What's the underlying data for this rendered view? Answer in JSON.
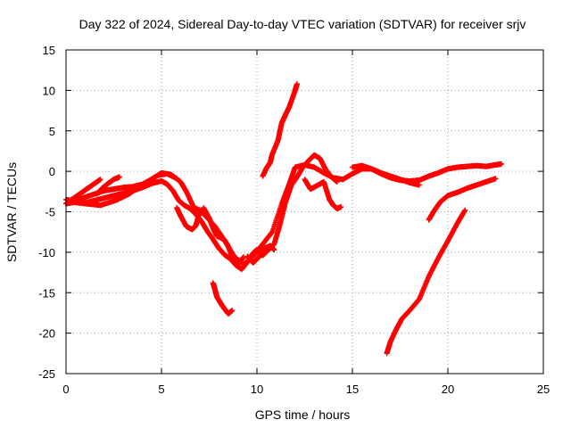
{
  "chart_data": {
    "type": "scatter",
    "title": "Day 322 of 2024, Sidereal Day-to-day VTEC variation (SDTVAR) for receiver srjv",
    "xlabel": "GPS time / hours",
    "ylabel": "SDTVAR / TECUs",
    "xlim": [
      0,
      25
    ],
    "ylim": [
      -25,
      15
    ],
    "xticks": [
      "0",
      "5",
      "10",
      "15",
      "20",
      "25"
    ],
    "yticks": [
      "-25",
      "-20",
      "-15",
      "-10",
      "-5",
      "0",
      "5",
      "10",
      "15"
    ],
    "grid": true,
    "marker": "+",
    "color": "#ff0000",
    "series": [
      {
        "x": [
          0,
          0.5,
          1,
          1.5,
          2,
          2.5,
          3,
          3.5,
          4,
          4.5,
          5,
          5.5,
          6,
          6.3,
          6.7,
          7,
          7.3,
          7.8,
          8.3,
          8.8,
          9.3,
          9.8,
          10.3,
          10.8,
          11.3,
          11.7,
          12,
          12.5,
          13,
          13.5,
          14,
          14.5,
          15,
          15.5,
          16,
          16.5,
          17,
          17.5,
          18,
          18.5,
          19,
          19.5,
          20,
          20.5,
          21,
          21.5,
          22,
          22.5,
          22.8
        ],
        "y": [
          -3.5,
          -3.7,
          -3.2,
          -2.8,
          -2.4,
          -2.2,
          -2,
          -1.9,
          -1.6,
          -1,
          -0.2,
          -0.4,
          -1.3,
          -2.5,
          -4.5,
          -4.8,
          -5.5,
          -6.8,
          -8.5,
          -10.5,
          -11.5,
          -10.5,
          -9,
          -7.5,
          -4,
          -1.5,
          0.5,
          0.8,
          0.5,
          -0.2,
          -0.8,
          -1,
          -0.3,
          0.3,
          0.3,
          -0.3,
          -0.8,
          -1.1,
          -1.2,
          -1.1,
          -0.6,
          -0.2,
          0.3,
          0.5,
          0.6,
          0.7,
          0.6,
          0.8,
          0.9
        ]
      },
      {
        "x": [
          0,
          0.5,
          1,
          1.5,
          2,
          2.5,
          3,
          3.5,
          4,
          4.5,
          5,
          5.3,
          5.6,
          5.9,
          6.2,
          6.5,
          6.8,
          7.1,
          7.4,
          7.7,
          8,
          8.3,
          8.6,
          8.9,
          9.2,
          9.5,
          9.8,
          10,
          10.3,
          10.6,
          10.9,
          11.2,
          11.5,
          11.8,
          12.1,
          12.4,
          12.7,
          13,
          13.3,
          13.6,
          13.9,
          14.2
        ],
        "y": [
          -4,
          -3.8,
          -3.9,
          -3.6,
          -3.3,
          -3,
          -2.7,
          -2.4,
          -2,
          -1.5,
          -1.2,
          -1.6,
          -2.4,
          -3.6,
          -4.2,
          -4.6,
          -5.3,
          -6.2,
          -7.4,
          -8.4,
          -9.5,
          -10.3,
          -10.8,
          -11.6,
          -12.1,
          -11.2,
          -10.1,
          -9.7,
          -10.4,
          -9.7,
          -9,
          -6.6,
          -3.8,
          -1.7,
          -0.7,
          0.5,
          1.3,
          2,
          1.6,
          0.2,
          -0.7,
          -1.3
        ]
      },
      {
        "x": [
          0,
          0.3,
          0.6,
          0.9,
          1.2,
          1.5,
          1.8
        ],
        "y": [
          -4,
          -3.5,
          -3,
          -2.5,
          -2,
          -1.5,
          -1
        ]
      },
      {
        "x": [
          1.6,
          1.9,
          2.2,
          2.5,
          2.8
        ],
        "y": [
          -2.8,
          -2.1,
          -1.5,
          -1,
          -0.7
        ]
      },
      {
        "x": [
          0.3,
          1,
          1.8,
          2.6,
          3.3,
          4.1,
          4.8,
          5.3,
          5.8
        ],
        "y": [
          -3.8,
          -4,
          -4.2,
          -3.6,
          -2.8,
          -1.5,
          -0.5,
          -0.3,
          -0.9
        ]
      },
      {
        "x": [
          5.8,
          6,
          6.3,
          6.6,
          6.8,
          7
        ],
        "y": [
          -4.5,
          -5.5,
          -6.8,
          -7.2,
          -6.7,
          -5
        ]
      },
      {
        "x": [
          7.2,
          7.5,
          7.7,
          7.9,
          8.1,
          8.3,
          8.5,
          8.7,
          8.9,
          9.1,
          9.3
        ],
        "y": [
          -4.5,
          -5.8,
          -7,
          -8,
          -8.2,
          -8.5,
          -9.3,
          -10.5,
          -11.4,
          -11.2,
          -10.6
        ]
      },
      {
        "x": [
          9.5,
          9.8,
          10.1,
          10.4,
          10.7,
          10.9
        ],
        "y": [
          -10.5,
          -11.3,
          -10.6,
          -9.5,
          -9.2,
          -9.7
        ]
      },
      {
        "x": [
          7.7,
          7.8,
          7.9,
          8.1,
          8.3,
          8.5,
          8.7
        ],
        "y": [
          -13.8,
          -14.6,
          -15.5,
          -16.3,
          -17,
          -17.6,
          -17.2
        ]
      },
      {
        "x": [
          10.3,
          10.5,
          10.7,
          10.8,
          11.1,
          11.3,
          11.5,
          11.7,
          12,
          12.1
        ],
        "y": [
          -0.6,
          0.4,
          1.1,
          2.1,
          3.8,
          6,
          7,
          8,
          10,
          10.8
        ]
      },
      {
        "x": [
          12.5,
          12.8,
          13.2,
          13.5,
          13.8,
          14,
          14.2,
          14.4
        ],
        "y": [
          -1,
          -2.2,
          -1.7,
          -1.3,
          -3.5,
          -4.2,
          -4.6,
          -4.4
        ]
      },
      {
        "x": [
          15,
          15.5,
          16,
          16.5,
          17,
          17.5,
          18,
          18.5
        ],
        "y": [
          0.5,
          0.7,
          0.3,
          -0.2,
          -0.6,
          -1,
          -1.4,
          -1.7
        ]
      },
      {
        "x": [
          19,
          19.3,
          19.6,
          20,
          20.5,
          21,
          21.5,
          22,
          22.5
        ],
        "y": [
          -6,
          -4.8,
          -3.8,
          -3,
          -2.6,
          -2.1,
          -1.7,
          -1.3,
          -0.9
        ]
      },
      {
        "x": [
          16.8,
          17,
          17.3,
          17.6,
          18,
          18.5,
          19,
          19.5,
          20,
          20.5,
          20.9
        ],
        "y": [
          -22.5,
          -21,
          -19.5,
          -18.2,
          -17.2,
          -15.8,
          -13,
          -10.7,
          -8.6,
          -6.4,
          -4.8
        ]
      }
    ]
  }
}
